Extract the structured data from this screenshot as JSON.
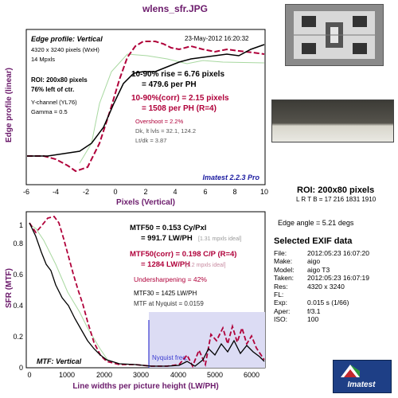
{
  "window_title": "wlens_sfr.JPG",
  "edge_panel": {
    "title": "Edge profile: Vertical",
    "date": "23-May-2012 16:20:32",
    "info": [
      "4320 x 3240 pixels (WxH)",
      "14 Mpxls"
    ],
    "roi_lines": [
      "ROI: 200x80 pixels",
      "76% left of ctr."
    ],
    "channel": "Y-channel (YL76)",
    "gamma": "Gamma = 0.5",
    "rise1": "10-90% rise = 6.76 pixels",
    "rise2": "= 479.6 per PH",
    "rise3": "10-90%(corr) = 2.15 pixels",
    "rise4": "= 1508 per PH  (R=4)",
    "overshoot": "Overshoot = 2.2%",
    "dklt": "Dk, lt lvls = 32.1, 124.2",
    "ltdk": "Lt/dk = 3.87",
    "version": "Imatest 2.2.3 Pro",
    "ylabel": "Edge profile (linear)",
    "xlabel": "Pixels (Vertical)",
    "xticks": [
      "-6",
      "-4",
      "-2",
      "0",
      "2",
      "4",
      "6",
      "8",
      "10"
    ]
  },
  "mtf_panel": {
    "mtf50": "MTF50 = 0.153 Cy/Pxl",
    "mtf50b": "= 991.7 LW/PH",
    "ideal1": "[1.31 mpxls ideal]",
    "mtf50c": "MTF50(corr) = 0.198 C/P  (R=4)",
    "mtf50d": "= 1284 LW/PH",
    "ideal2": "[2.2 mpxls ideal]",
    "undersharp": "Undersharpening = 42%",
    "mtf30": "MTF30 = 1425 LW/PH",
    "nyq": "MTF at Nyquist = 0.0159",
    "nyq_label": "Nyquist freq.",
    "footer": "MTF: Vertical",
    "ylabel": "SFR (MTF)",
    "xlabel": "Line widths per picture height (LW/PH)",
    "xticks": [
      "0",
      "1000",
      "2000",
      "3000",
      "4000",
      "5000",
      "6000"
    ],
    "yticks": [
      "0",
      "0.2",
      "0.4",
      "0.6",
      "0.8",
      "1"
    ]
  },
  "roi_label": "ROI: 200x80 pixels",
  "roi_coords": "L R  T B = 17 216  1831 1910",
  "edge_angle": "Edge angle = 5.21 degs",
  "exif_title": "Selected EXIF data",
  "exif": [
    {
      "k": "File:",
      "v": "2012:05:23 16:07:20"
    },
    {
      "k": "Make:",
      "v": "aigo"
    },
    {
      "k": "Model:",
      "v": "aigo T3"
    },
    {
      "k": "Taken:",
      "v": "2012:05:23 16:07:19"
    },
    {
      "k": "Res:",
      "v": "4320 x 3240"
    },
    {
      "k": "FL:",
      "v": ""
    },
    {
      "k": "Exp:",
      "v": "0.015 s  (1/66)"
    },
    {
      "k": "Aper:",
      "v": "f/3.1"
    },
    {
      "k": "ISO:",
      "v": "100"
    }
  ],
  "logo_text": "Imatest",
  "colors": {
    "accent": "#b0003a",
    "title": "#6b1a6b",
    "nyquist": "#3a3ad0",
    "ideal": "#9a9a9a"
  }
}
